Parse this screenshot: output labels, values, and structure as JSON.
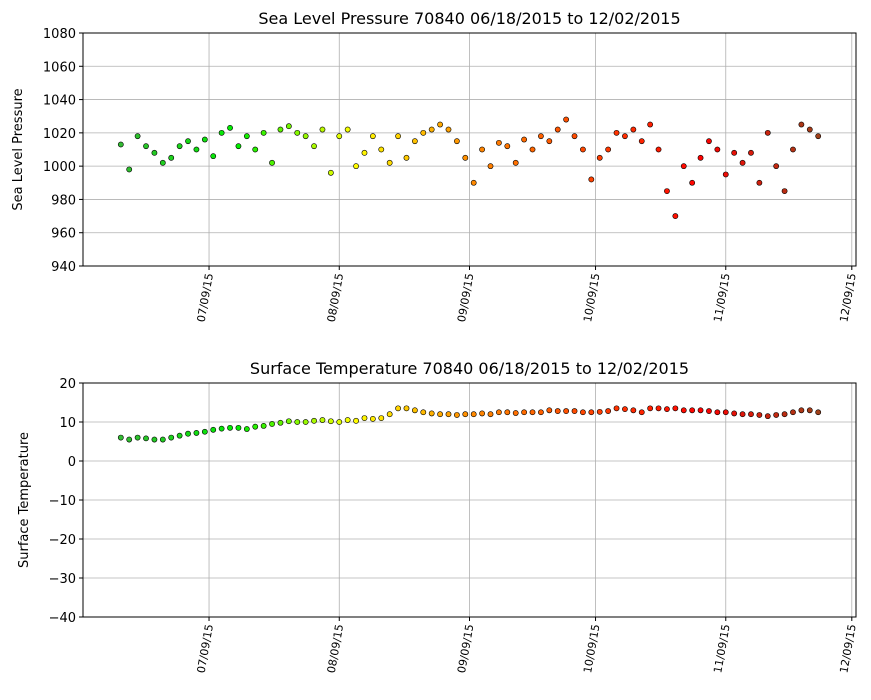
{
  "chart_data": [
    {
      "type": "scatter",
      "title": "Sea Level Pressure 70840  06/18/2015 to 12/02/2015",
      "y_label": "Sea Level Pressure",
      "x": [
        "2015-06-18",
        "2015-06-20",
        "2015-06-22",
        "2015-06-24",
        "2015-06-26",
        "2015-06-28",
        "2015-06-30",
        "2015-07-02",
        "2015-07-04",
        "2015-07-06",
        "2015-07-08",
        "2015-07-10",
        "2015-07-12",
        "2015-07-14",
        "2015-07-16",
        "2015-07-18",
        "2015-07-20",
        "2015-07-22",
        "2015-07-24",
        "2015-07-26",
        "2015-07-28",
        "2015-07-30",
        "2015-08-01",
        "2015-08-03",
        "2015-08-05",
        "2015-08-07",
        "2015-08-09",
        "2015-08-11",
        "2015-08-13",
        "2015-08-15",
        "2015-08-17",
        "2015-08-19",
        "2015-08-21",
        "2015-08-23",
        "2015-08-25",
        "2015-08-27",
        "2015-08-29",
        "2015-08-31",
        "2015-09-02",
        "2015-09-04",
        "2015-09-06",
        "2015-09-08",
        "2015-09-10",
        "2015-09-12",
        "2015-09-14",
        "2015-09-16",
        "2015-09-18",
        "2015-09-20",
        "2015-09-22",
        "2015-09-24",
        "2015-09-26",
        "2015-09-28",
        "2015-09-30",
        "2015-10-02",
        "2015-10-04",
        "2015-10-06",
        "2015-10-08",
        "2015-10-10",
        "2015-10-12",
        "2015-10-14",
        "2015-10-16",
        "2015-10-18",
        "2015-10-20",
        "2015-10-22",
        "2015-10-24",
        "2015-10-26",
        "2015-10-28",
        "2015-10-30",
        "2015-11-01",
        "2015-11-03",
        "2015-11-05",
        "2015-11-07",
        "2015-11-09",
        "2015-11-11",
        "2015-11-13",
        "2015-11-15",
        "2015-11-17",
        "2015-11-19",
        "2015-11-21",
        "2015-11-23",
        "2015-11-25",
        "2015-11-27",
        "2015-11-29",
        "2015-12-01"
      ],
      "values": [
        1013,
        998,
        1018,
        1012,
        1008,
        1002,
        1005,
        1012,
        1015,
        1010,
        1016,
        1006,
        1020,
        1023,
        1012,
        1018,
        1010,
        1020,
        1002,
        1022,
        1024,
        1020,
        1018,
        1012,
        1022,
        996,
        1018,
        1022,
        1000,
        1008,
        1018,
        1010,
        1002,
        1018,
        1005,
        1015,
        1020,
        1022,
        1025,
        1022,
        1015,
        1005,
        990,
        1010,
        1000,
        1014,
        1012,
        1002,
        1016,
        1010,
        1018,
        1015,
        1022,
        1028,
        1018,
        1010,
        992,
        1005,
        1010,
        1020,
        1018,
        1022,
        1015,
        1025,
        1010,
        985,
        970,
        1000,
        990,
        1005,
        1015,
        1010,
        995,
        1008,
        1002,
        1008,
        990,
        1020,
        1000,
        985,
        1010,
        1025,
        1022,
        1018
      ],
      "colormap": [
        "#33bb33",
        "#00ee00",
        "#ffff00",
        "#ff8c00",
        "#ff4500",
        "#ff0000",
        "#a0401a"
      ],
      "xlim": [
        "2015-06-09",
        "2015-12-10"
      ],
      "xticks": [
        {
          "value": "2015-07-09",
          "label": "07/09/15"
        },
        {
          "value": "2015-08-09",
          "label": "08/09/15"
        },
        {
          "value": "2015-09-09",
          "label": "09/09/15"
        },
        {
          "value": "2015-10-09",
          "label": "10/09/15"
        },
        {
          "value": "2015-11-09",
          "label": "11/09/15"
        },
        {
          "value": "2015-12-09",
          "label": "12/09/15"
        }
      ],
      "ylim": [
        940,
        1080
      ],
      "yticks": [
        940,
        960,
        980,
        1000,
        1020,
        1040,
        1060,
        1080
      ],
      "grid": true
    },
    {
      "type": "scatter",
      "title": "Surface Temperature 70840  06/18/2015 to 12/02/2015",
      "y_label": "Surface Temperature",
      "x": [
        "2015-06-18",
        "2015-06-20",
        "2015-06-22",
        "2015-06-24",
        "2015-06-26",
        "2015-06-28",
        "2015-06-30",
        "2015-07-02",
        "2015-07-04",
        "2015-07-06",
        "2015-07-08",
        "2015-07-10",
        "2015-07-12",
        "2015-07-14",
        "2015-07-16",
        "2015-07-18",
        "2015-07-20",
        "2015-07-22",
        "2015-07-24",
        "2015-07-26",
        "2015-07-28",
        "2015-07-30",
        "2015-08-01",
        "2015-08-03",
        "2015-08-05",
        "2015-08-07",
        "2015-08-09",
        "2015-08-11",
        "2015-08-13",
        "2015-08-15",
        "2015-08-17",
        "2015-08-19",
        "2015-08-21",
        "2015-08-23",
        "2015-08-25",
        "2015-08-27",
        "2015-08-29",
        "2015-08-31",
        "2015-09-02",
        "2015-09-04",
        "2015-09-06",
        "2015-09-08",
        "2015-09-10",
        "2015-09-12",
        "2015-09-14",
        "2015-09-16",
        "2015-09-18",
        "2015-09-20",
        "2015-09-22",
        "2015-09-24",
        "2015-09-26",
        "2015-09-28",
        "2015-09-30",
        "2015-10-02",
        "2015-10-04",
        "2015-10-06",
        "2015-10-08",
        "2015-10-10",
        "2015-10-12",
        "2015-10-14",
        "2015-10-16",
        "2015-10-18",
        "2015-10-20",
        "2015-10-22",
        "2015-10-24",
        "2015-10-26",
        "2015-10-28",
        "2015-10-30",
        "2015-11-01",
        "2015-11-03",
        "2015-11-05",
        "2015-11-07",
        "2015-11-09",
        "2015-11-11",
        "2015-11-13",
        "2015-11-15",
        "2015-11-17",
        "2015-11-19",
        "2015-11-21",
        "2015-11-23",
        "2015-11-25",
        "2015-11-27",
        "2015-11-29",
        "2015-12-01"
      ],
      "values": [
        6,
        5.5,
        6,
        5.8,
        5.5,
        5.5,
        6,
        6.5,
        7,
        7.2,
        7.5,
        8,
        8.3,
        8.5,
        8.5,
        8.2,
        8.8,
        9,
        9.5,
        9.8,
        10.2,
        10,
        10,
        10.3,
        10.5,
        10.2,
        10,
        10.5,
        10.3,
        11,
        10.8,
        11,
        12,
        13.5,
        13.5,
        13,
        12.5,
        12.2,
        12,
        12,
        11.8,
        12,
        12,
        12.2,
        12,
        12.5,
        12.5,
        12.3,
        12.5,
        12.5,
        12.5,
        13,
        12.8,
        12.8,
        12.8,
        12.5,
        12.5,
        12.6,
        12.8,
        13.5,
        13.3,
        13,
        12.5,
        13.5,
        13.5,
        13.3,
        13.5,
        13,
        13,
        13,
        12.8,
        12.5,
        12.5,
        12.2,
        12,
        12,
        11.8,
        11.5,
        11.8,
        12,
        12.5,
        13,
        13,
        12.5
      ],
      "colormap": [
        "#33bb33",
        "#00ee00",
        "#ffff00",
        "#ff8c00",
        "#ff4500",
        "#ff0000",
        "#a0401a"
      ],
      "xlim": [
        "2015-06-09",
        "2015-12-10"
      ],
      "xticks": [
        {
          "value": "2015-07-09",
          "label": "07/09/15"
        },
        {
          "value": "2015-08-09",
          "label": "08/09/15"
        },
        {
          "value": "2015-09-09",
          "label": "09/09/15"
        },
        {
          "value": "2015-10-09",
          "label": "10/09/15"
        },
        {
          "value": "2015-11-09",
          "label": "11/09/15"
        },
        {
          "value": "2015-12-09",
          "label": "12/09/15"
        }
      ],
      "ylim": [
        -40,
        20
      ],
      "yticks": [
        {
          "value": -40,
          "label": "−40"
        },
        {
          "value": -30,
          "label": "−30"
        },
        {
          "value": -20,
          "label": "−20"
        },
        {
          "value": -10,
          "label": "−10"
        },
        0,
        10,
        20
      ],
      "grid": true
    }
  ]
}
